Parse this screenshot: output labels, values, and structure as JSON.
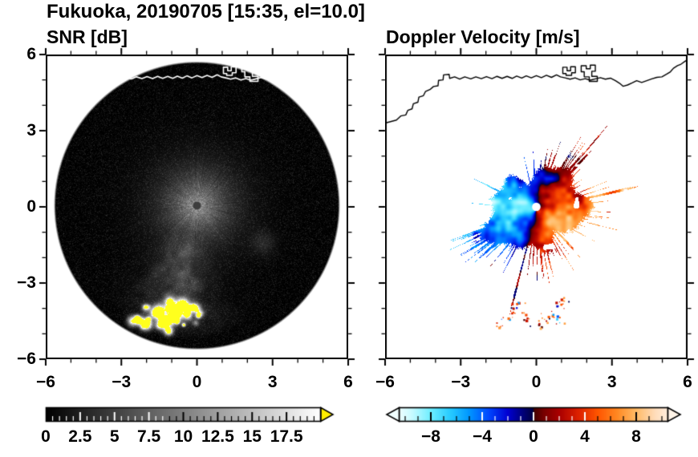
{
  "figure": {
    "title": "Fukuoka, 20190705 [15:35, el=10.0]",
    "site": "Fukuoka",
    "date": "20190705",
    "time": "15:35",
    "elevation_deg": 10.0
  },
  "chart_data": [
    {
      "id": "snr",
      "type": "heatmap",
      "title": "SNR [dB]",
      "units": "dB",
      "xlim": [
        -6,
        6
      ],
      "ylim": [
        -6,
        6
      ],
      "xtick_values": [
        -6,
        -3,
        0,
        3,
        6
      ],
      "xtick_labels": [
        "−6",
        "−3",
        "0",
        "3",
        "6"
      ],
      "ytick_values": [
        6,
        3,
        0,
        -3,
        -6
      ],
      "ytick_labels": [
        "6",
        "3",
        "0",
        "−3",
        "−6"
      ],
      "minor_tick_step": 1,
      "grid": false,
      "scan": {
        "center_xy": [
          0,
          0.05
        ],
        "radius_km": 5.65,
        "background_db": [
          0,
          3
        ],
        "center_glow": {
          "peak_db": 14,
          "extent_km": 2.0,
          "style": "radial streaks"
        },
        "radar_dot": {
          "xy": [
            0,
            0.05
          ],
          "radius_km": 0.16,
          "color": "#3d3d3d"
        },
        "plume": {
          "azimuth_deg": 193,
          "half_width_deg": 15,
          "range_km": [
            1.0,
            5.0
          ],
          "db": [
            3,
            8
          ]
        },
        "strong_echo_cluster": {
          "center_xy": [
            -1.2,
            -4.3
          ],
          "spread_xy": [
            1.45,
            0.6
          ],
          "max_db": 26,
          "saturated_color": "#ffff1e"
        },
        "faint_echo_xy": [
          2.65,
          -1.45
        ]
      },
      "colorbar": {
        "orientation": "horizontal",
        "range": [
          0,
          20
        ],
        "tick_values": [
          0,
          2.5,
          5,
          7.5,
          10,
          12.5,
          15,
          17.5
        ],
        "tick_labels": [
          "0",
          "2.5",
          "5",
          "7.5",
          "10",
          "12.5",
          "15",
          "17.5"
        ],
        "minor_step": 0.5,
        "colormap": "black-to-white",
        "over_arrow_color": "#ffee00"
      }
    },
    {
      "id": "doppler_velocity",
      "type": "heatmap",
      "title": "Doppler Velocity [m/s]",
      "units": "m/s",
      "xlim": [
        -6,
        6
      ],
      "ylim": [
        -6,
        6
      ],
      "xtick_values": [
        -6,
        -3,
        0,
        3,
        6
      ],
      "xtick_labels": [
        "−6",
        "−3",
        "0",
        "3",
        "6"
      ],
      "ytick_values": [
        6,
        3,
        0,
        -3,
        -6
      ],
      "ytick_labels": [
        "6",
        "3",
        "0",
        "−3",
        "−6"
      ],
      "minor_tick_step": 1,
      "grid": false,
      "field": {
        "pattern": "azimuthal dipole",
        "blob_center_xy": [
          0,
          -0.12
        ],
        "blob_radius_km": 1.72,
        "negative_blue_sector": "west",
        "positive_red_sector": "east",
        "amplitude_ms": 6.5,
        "radar_dot": {
          "xy": [
            0,
            0
          ],
          "radius_km": 0.17,
          "color": "#ffffff"
        },
        "echo_speckle_clusters": [
          [
            -0.85,
            -4.0
          ],
          [
            0.45,
            -4.35
          ],
          [
            1.0,
            -3.75
          ],
          [
            -1.35,
            -4.55
          ],
          [
            -0.15,
            -4.55
          ],
          [
            0.75,
            -4.6
          ]
        ]
      },
      "colorbar": {
        "orientation": "horizontal",
        "range": [
          -10.5,
          10.5
        ],
        "tick_values": [
          -8,
          -4,
          0,
          4,
          8
        ],
        "tick_labels": [
          "−8",
          "−4",
          "0",
          "4",
          "8"
        ],
        "minor_step": 1,
        "colormap_stops": [
          [
            -10.5,
            "#eeffff"
          ],
          [
            -9.5,
            "#c8fbff"
          ],
          [
            -8,
            "#6ceeff"
          ],
          [
            -6.5,
            "#28ccff"
          ],
          [
            -5,
            "#0096ff"
          ],
          [
            -3.5,
            "#0048ff"
          ],
          [
            -2,
            "#0000d2"
          ],
          [
            -0.8,
            "#000078"
          ],
          [
            -0.05,
            "#000042"
          ],
          [
            0.05,
            "#420000"
          ],
          [
            0.8,
            "#780000"
          ],
          [
            2,
            "#aa0000"
          ],
          [
            3.5,
            "#dd2200"
          ],
          [
            5,
            "#ff5500"
          ],
          [
            6.5,
            "#ff8822"
          ],
          [
            8,
            "#ffbb66"
          ],
          [
            9.5,
            "#ffddbb"
          ],
          [
            10.5,
            "#ffeedd"
          ]
        ],
        "under_arrow_color": "#f0feff",
        "over_arrow_color": "#fff4e8"
      }
    }
  ],
  "coastline": {
    "stroke_on_snr_panel": "#ffffff",
    "stroke_on_velocity_panel": "#000000",
    "mainland": [
      [
        -6,
        3.3
      ],
      [
        -5.55,
        3.42
      ],
      [
        -5.38,
        3.58
      ],
      [
        -5.18,
        3.62
      ],
      [
        -5.1,
        3.8
      ],
      [
        -4.93,
        3.86
      ],
      [
        -4.88,
        4.06
      ],
      [
        -4.7,
        4.12
      ],
      [
        -4.66,
        4.32
      ],
      [
        -4.48,
        4.38
      ],
      [
        -4.4,
        4.54
      ],
      [
        -4.22,
        4.62
      ],
      [
        -4.08,
        4.74
      ],
      [
        -3.9,
        4.77
      ],
      [
        -3.88,
        4.98
      ],
      [
        -3.7,
        5.0
      ],
      [
        -3.68,
        5.2
      ],
      [
        -3.46,
        5.22
      ],
      [
        -3.44,
        5.06
      ],
      [
        -3.24,
        5.12
      ],
      [
        -3.04,
        5.03
      ],
      [
        -2.84,
        5.12
      ],
      [
        -2.6,
        5.04
      ],
      [
        -2.4,
        5.12
      ],
      [
        -2.18,
        5.05
      ],
      [
        -1.98,
        5.13
      ],
      [
        -1.76,
        5.05
      ],
      [
        -1.56,
        5.14
      ],
      [
        -1.36,
        5.06
      ],
      [
        -1.16,
        5.14
      ],
      [
        -0.96,
        5.06
      ],
      [
        -0.78,
        5.15
      ],
      [
        -0.58,
        5.07
      ],
      [
        -0.4,
        5.16
      ],
      [
        -0.2,
        5.08
      ],
      [
        0,
        5.17
      ],
      [
        0.2,
        5.09
      ],
      [
        0.4,
        5.18
      ],
      [
        0.6,
        5.1
      ],
      [
        0.8,
        5.2
      ],
      [
        0.96,
        5.12
      ],
      [
        1.14,
        5.08
      ],
      [
        1.34,
        5.03
      ],
      [
        1.54,
        5.08
      ],
      [
        1.74,
        5.0
      ],
      [
        1.94,
        5.05
      ],
      [
        2.14,
        4.99
      ],
      [
        2.34,
        5.04
      ],
      [
        2.54,
        5.09
      ],
      [
        2.74,
        5.03
      ],
      [
        2.94,
        5.07
      ],
      [
        3.14,
        4.97
      ],
      [
        3.3,
        4.87
      ],
      [
        3.44,
        4.75
      ],
      [
        3.62,
        4.8
      ],
      [
        3.8,
        4.88
      ],
      [
        3.98,
        4.97
      ],
      [
        4.18,
        4.9
      ],
      [
        4.38,
        4.97
      ],
      [
        4.58,
        5.04
      ],
      [
        4.78,
        5.1
      ],
      [
        4.98,
        5.12
      ],
      [
        5.16,
        5.22
      ],
      [
        5.32,
        5.32
      ],
      [
        5.44,
        5.46
      ],
      [
        5.6,
        5.56
      ],
      [
        5.74,
        5.62
      ],
      [
        5.88,
        5.72
      ],
      [
        6,
        5.8
      ]
    ],
    "harbor_structures": [
      [
        [
          1.05,
          5.25
        ],
        [
          1.05,
          5.5
        ],
        [
          1.22,
          5.5
        ],
        [
          1.22,
          5.36
        ],
        [
          1.36,
          5.36
        ],
        [
          1.36,
          5.52
        ],
        [
          1.55,
          5.52
        ],
        [
          1.55,
          5.28
        ],
        [
          1.4,
          5.28
        ],
        [
          1.4,
          5.18
        ],
        [
          1.18,
          5.18
        ],
        [
          1.18,
          5.25
        ],
        [
          1.05,
          5.25
        ]
      ],
      [
        [
          1.78,
          5.32
        ],
        [
          1.78,
          5.56
        ],
        [
          1.98,
          5.56
        ],
        [
          1.98,
          5.44
        ],
        [
          2.14,
          5.44
        ],
        [
          2.14,
          5.58
        ],
        [
          2.34,
          5.58
        ],
        [
          2.34,
          5.34
        ],
        [
          2.2,
          5.34
        ],
        [
          2.2,
          5.14
        ],
        [
          2.42,
          5.14
        ],
        [
          2.42,
          4.94
        ],
        [
          2.1,
          4.94
        ],
        [
          2.1,
          5.12
        ],
        [
          1.9,
          5.12
        ],
        [
          1.9,
          5.32
        ],
        [
          1.78,
          5.32
        ]
      ]
    ]
  }
}
